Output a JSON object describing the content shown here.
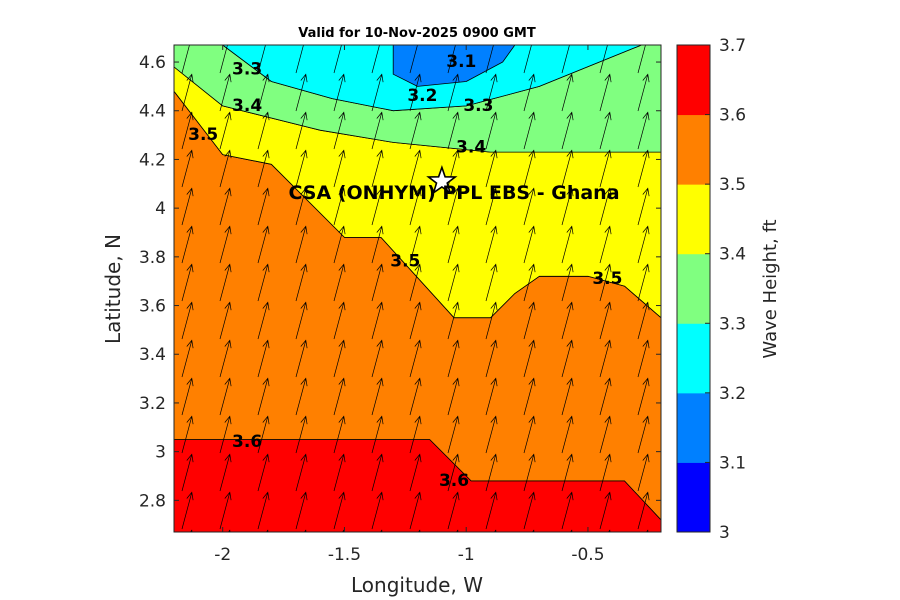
{
  "chart_data": {
    "type": "filled-contour",
    "title": "Valid for 10-Nov-2025 0900 GMT",
    "xlabel": "Longitude, W",
    "ylabel": "Latitude, N",
    "xlim": [
      -2.2,
      -0.2
    ],
    "ylim": [
      2.67,
      4.67
    ],
    "xticks": [
      -2,
      -1.5,
      -1,
      -0.5
    ],
    "xtick_labels": [
      "-2",
      "-1.5",
      "-1",
      "-0.5"
    ],
    "yticks": [
      2.8,
      3.0,
      3.2,
      3.4,
      3.6,
      3.8,
      4.0,
      4.2,
      4.4,
      4.6
    ],
    "ytick_labels": [
      "2.8",
      "3",
      "3.2",
      "3.4",
      "3.6",
      "3.8",
      "4",
      "4.2",
      "4.4",
      "4.6"
    ],
    "colorbar": {
      "label": "Wave Height, ft",
      "range": [
        3.0,
        3.7
      ],
      "ticks": [
        3.0,
        3.1,
        3.2,
        3.3,
        3.4,
        3.5,
        3.6,
        3.7
      ],
      "tick_labels": [
        "3",
        "3.1",
        "3.2",
        "3.3",
        "3.4",
        "3.5",
        "3.6",
        "3.7"
      ],
      "colors": [
        "#0000ff",
        "#0080ff",
        "#00ffff",
        "#80ff80",
        "#ffff00",
        "#ff8000",
        "#ff0000"
      ]
    },
    "regions": [
      {
        "level": 3.6,
        "color": "#ff0000",
        "points": [
          [
            -2.2,
            2.67
          ],
          [
            -0.2,
            2.67
          ],
          [
            -0.2,
            2.72
          ],
          [
            -0.35,
            2.88
          ],
          [
            -0.8,
            2.88
          ],
          [
            -0.98,
            2.88
          ],
          [
            -1.15,
            3.05
          ],
          [
            -2.2,
            3.05
          ]
        ]
      },
      {
        "level": 3.5,
        "color": "#ff8000",
        "points": [
          [
            -2.2,
            3.05
          ],
          [
            -1.15,
            3.05
          ],
          [
            -0.98,
            2.88
          ],
          [
            -0.35,
            2.88
          ],
          [
            -0.2,
            2.72
          ],
          [
            -0.2,
            3.55
          ],
          [
            -0.35,
            3.68
          ],
          [
            -0.5,
            3.72
          ],
          [
            -0.7,
            3.72
          ],
          [
            -0.8,
            3.65
          ],
          [
            -0.9,
            3.55
          ],
          [
            -1.05,
            3.55
          ],
          [
            -1.35,
            3.88
          ],
          [
            -1.5,
            3.88
          ],
          [
            -1.8,
            4.18
          ],
          [
            -2.0,
            4.22
          ],
          [
            -2.2,
            4.48
          ]
        ]
      },
      {
        "level": 3.4,
        "color": "#ffff00",
        "points": [
          [
            -2.2,
            4.48
          ],
          [
            -2.0,
            4.22
          ],
          [
            -1.8,
            4.18
          ],
          [
            -1.5,
            3.88
          ],
          [
            -1.35,
            3.88
          ],
          [
            -1.05,
            3.55
          ],
          [
            -0.9,
            3.55
          ],
          [
            -0.8,
            3.65
          ],
          [
            -0.7,
            3.72
          ],
          [
            -0.5,
            3.72
          ],
          [
            -0.35,
            3.68
          ],
          [
            -0.2,
            3.55
          ],
          [
            -0.2,
            4.23
          ],
          [
            -0.9,
            4.23
          ],
          [
            -1.3,
            4.27
          ],
          [
            -1.6,
            4.32
          ],
          [
            -2.0,
            4.42
          ],
          [
            -2.2,
            4.58
          ]
        ]
      },
      {
        "level": 3.3,
        "color": "#80ff80",
        "points": [
          [
            -2.2,
            4.58
          ],
          [
            -2.0,
            4.42
          ],
          [
            -1.6,
            4.32
          ],
          [
            -1.3,
            4.27
          ],
          [
            -0.9,
            4.23
          ],
          [
            -0.2,
            4.23
          ],
          [
            -0.2,
            4.67
          ],
          [
            -0.28,
            4.67
          ],
          [
            -0.7,
            4.5
          ],
          [
            -1.0,
            4.42
          ],
          [
            -1.3,
            4.4
          ],
          [
            -1.55,
            4.45
          ],
          [
            -1.8,
            4.52
          ],
          [
            -2.0,
            4.67
          ],
          [
            -2.2,
            4.67
          ]
        ]
      },
      {
        "level": 3.2,
        "color": "#00ffff",
        "points": [
          [
            -2.0,
            4.67
          ],
          [
            -1.8,
            4.52
          ],
          [
            -1.55,
            4.45
          ],
          [
            -1.3,
            4.4
          ],
          [
            -1.0,
            4.42
          ],
          [
            -0.7,
            4.5
          ],
          [
            -0.28,
            4.67
          ]
        ]
      },
      {
        "level": 3.1,
        "color": "#0080ff",
        "points": [
          [
            -1.3,
            4.67
          ],
          [
            -1.3,
            4.55
          ],
          [
            -1.2,
            4.5
          ],
          [
            -1.0,
            4.52
          ],
          [
            -0.85,
            4.6
          ],
          [
            -0.8,
            4.67
          ]
        ]
      }
    ],
    "contour_labels": [
      {
        "text": "3.1",
        "x": -1.02,
        "y": 4.6
      },
      {
        "text": "3.2",
        "x": -1.18,
        "y": 4.46
      },
      {
        "text": "3.3",
        "x": -1.9,
        "y": 4.57
      },
      {
        "text": "3.3",
        "x": -0.95,
        "y": 4.42
      },
      {
        "text": "3.4",
        "x": -1.9,
        "y": 4.42
      },
      {
        "text": "3.4",
        "x": -0.98,
        "y": 4.25
      },
      {
        "text": "3.5",
        "x": -2.08,
        "y": 4.3
      },
      {
        "text": "3.5",
        "x": -1.25,
        "y": 3.78
      },
      {
        "text": "3.5",
        "x": -0.42,
        "y": 3.71
      },
      {
        "text": "3.6",
        "x": -1.9,
        "y": 3.04
      },
      {
        "text": "3.6",
        "x": -1.05,
        "y": 2.88
      }
    ],
    "site": {
      "name": "CSA (ONHYM) PPL EBS  - Ghana",
      "lon": -1.1,
      "lat": 4.11,
      "label_x": -1.05,
      "label_y": 4.06
    },
    "wave_direction_deg": 15
  }
}
